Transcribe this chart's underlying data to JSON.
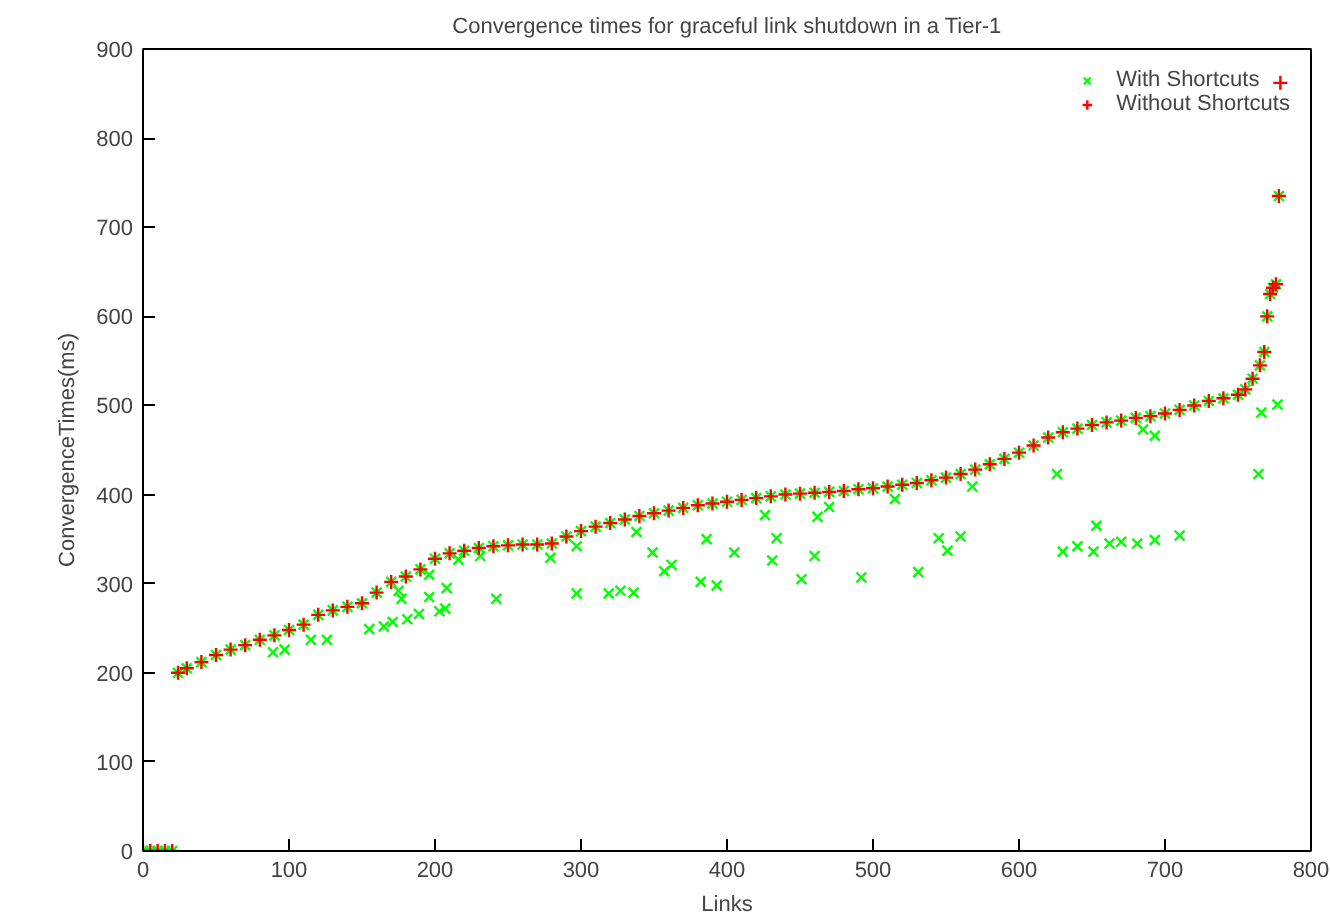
{
  "chart_data": {
    "type": "scatter",
    "title": "Convergence times for graceful link shutdown in a Tier-1",
    "xlabel": "Links",
    "ylabel": "ConvergenceTimes(ms)",
    "xlim": [
      0,
      800
    ],
    "ylim": [
      0,
      900
    ],
    "xticks": [
      0,
      100,
      200,
      300,
      400,
      500,
      600,
      700,
      800
    ],
    "yticks": [
      0,
      100,
      200,
      300,
      400,
      500,
      600,
      700,
      800,
      900
    ],
    "grid": false,
    "legend": "top right",
    "series": [
      {
        "name": "With Shortcuts",
        "color": "#00ff00",
        "marker": "x",
        "x": [
          0,
          5,
          10,
          15,
          20,
          24,
          30,
          40,
          50,
          60,
          70,
          80,
          90,
          100,
          110,
          120,
          130,
          140,
          150,
          160,
          170,
          180,
          190,
          200,
          210,
          220,
          230,
          240,
          250,
          260,
          270,
          280,
          290,
          300,
          310,
          320,
          330,
          340,
          350,
          360,
          370,
          380,
          390,
          400,
          410,
          420,
          430,
          440,
          450,
          460,
          470,
          480,
          490,
          500,
          510,
          520,
          530,
          540,
          550,
          560,
          570,
          580,
          590,
          600,
          610,
          620,
          630,
          640,
          650,
          660,
          670,
          680,
          690,
          700,
          710,
          720,
          730,
          740,
          750,
          755,
          760,
          765,
          768,
          770,
          772,
          774,
          776,
          778,
          89,
          97,
          115,
          126,
          155,
          165,
          171,
          175,
          177,
          181,
          189,
          196,
          196,
          203,
          207,
          208,
          216,
          231,
          242,
          279,
          297,
          297,
          319,
          327,
          336,
          338,
          349,
          357,
          362,
          382,
          386,
          393,
          405,
          426,
          431,
          434,
          451,
          460,
          462,
          470,
          492,
          515,
          531,
          545,
          551,
          560,
          568,
          626,
          630,
          640,
          651,
          653,
          662,
          670,
          681,
          685,
          693,
          693,
          710,
          764,
          766,
          777
        ],
        "values": [
          0,
          0,
          0,
          0,
          0,
          200,
          205,
          212,
          220,
          226,
          231,
          237,
          242,
          248,
          254,
          265,
          270,
          274,
          278,
          290,
          302,
          308,
          316,
          328,
          334,
          337,
          340,
          342,
          343,
          344,
          344,
          345,
          353,
          359,
          364,
          368,
          372,
          376,
          379,
          382,
          385,
          388,
          390,
          392,
          394,
          396,
          398,
          400,
          401,
          402,
          403,
          404,
          406,
          407,
          409,
          411,
          413,
          416,
          419,
          423,
          428,
          434,
          440,
          447,
          455,
          464,
          470,
          474,
          478,
          481,
          483,
          486,
          488,
          491,
          495,
          500,
          505,
          508,
          512,
          518,
          530,
          545,
          560,
          600,
          625,
          632,
          636,
          735,
          223,
          226,
          237,
          237,
          249,
          252,
          257,
          292,
          283,
          260,
          266,
          285,
          310,
          269,
          272,
          295,
          327,
          331,
          283,
          329,
          342,
          289,
          289,
          292,
          290,
          358,
          335,
          314,
          321,
          302,
          350,
          298,
          335,
          377,
          326,
          351,
          305,
          331,
          375,
          386,
          307,
          395,
          313,
          351,
          337,
          353,
          409,
          423,
          336,
          342,
          336,
          365,
          345,
          347,
          345,
          473,
          349,
          466,
          354,
          423,
          492,
          501
        ]
      },
      {
        "name": "Without Shortcuts",
        "color": "#ff0000",
        "marker": "cross",
        "x": [
          0,
          5,
          10,
          15,
          20,
          24,
          30,
          40,
          50,
          60,
          70,
          80,
          90,
          100,
          110,
          120,
          130,
          140,
          150,
          160,
          170,
          180,
          190,
          200,
          210,
          220,
          230,
          240,
          250,
          260,
          270,
          280,
          290,
          300,
          310,
          320,
          330,
          340,
          350,
          360,
          370,
          380,
          390,
          400,
          410,
          420,
          430,
          440,
          450,
          460,
          470,
          480,
          490,
          500,
          510,
          520,
          530,
          540,
          550,
          560,
          570,
          580,
          590,
          600,
          610,
          620,
          630,
          640,
          650,
          660,
          670,
          680,
          690,
          700,
          710,
          720,
          730,
          740,
          750,
          755,
          760,
          765,
          768,
          770,
          772,
          774,
          776,
          778,
          779
        ],
        "values": [
          0,
          0,
          0,
          0,
          0,
          200,
          205,
          212,
          220,
          226,
          231,
          237,
          242,
          248,
          254,
          265,
          270,
          274,
          278,
          290,
          302,
          308,
          316,
          328,
          334,
          337,
          340,
          342,
          343,
          344,
          344,
          345,
          353,
          359,
          364,
          368,
          372,
          376,
          379,
          382,
          385,
          388,
          390,
          392,
          394,
          396,
          398,
          400,
          401,
          402,
          403,
          404,
          406,
          407,
          409,
          411,
          413,
          416,
          419,
          423,
          428,
          434,
          440,
          447,
          455,
          464,
          470,
          474,
          478,
          481,
          483,
          486,
          488,
          491,
          495,
          500,
          505,
          508,
          512,
          518,
          530,
          545,
          560,
          600,
          625,
          632,
          636,
          735,
          862
        ]
      }
    ]
  }
}
